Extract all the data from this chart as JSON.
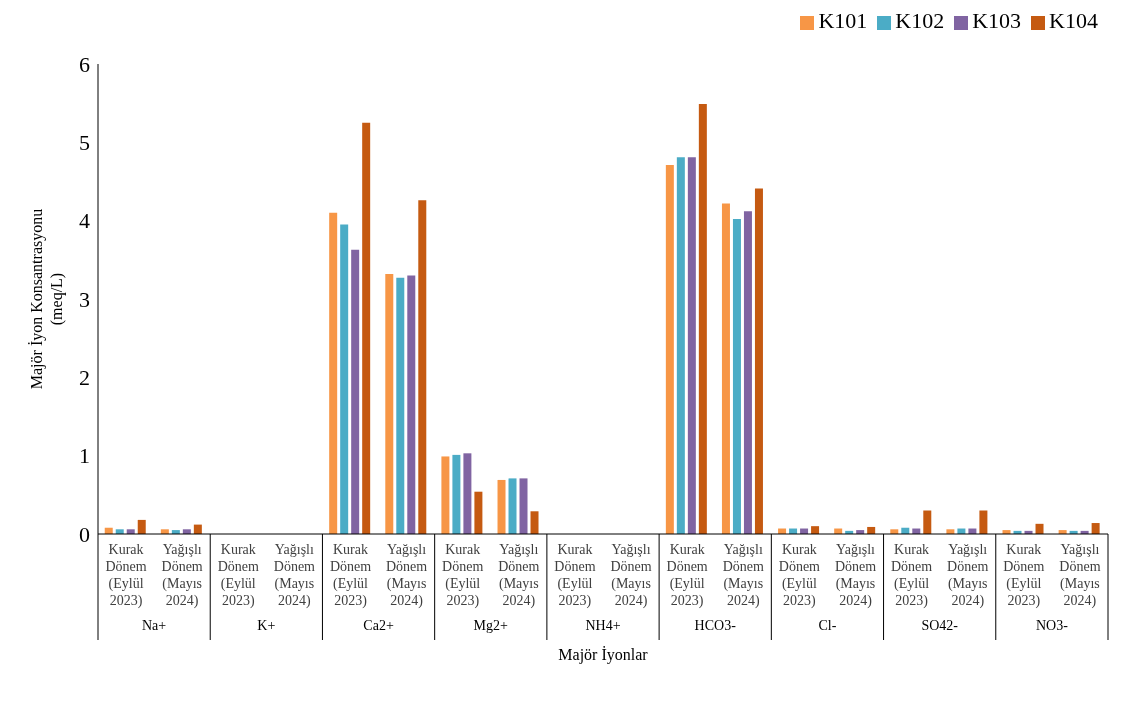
{
  "chart_data": {
    "type": "bar",
    "xlabel": "Majör İyonlar",
    "ylabel": "Majör İyon Konsantrasyonu (meq/L)",
    "categories": [
      "Kurak Dönem (Eylül 2023)",
      "Yağışlı Dönem (Mayıs 2024)",
      "Kurak Dönem (Eylül 2023)",
      "Yağışlı Dönem (Mayıs 2024)",
      "Kurak Dönem (Eylül 2023)",
      "Yağışlı Dönem (Mayıs 2024)",
      "Kurak Dönem (Eylül 2023)",
      "Yağışlı Dönem (Mayıs 2024)",
      "Kurak Dönem (Eylül 2023)",
      "Yağışlı Dönem (Mayıs 2024)",
      "Kurak Dönem (Eylül 2023)",
      "Yağışlı Dönem (Mayıs 2024)",
      "Kurak Dönem (Eylül 2023)",
      "Yağışlı Dönem (Mayıs 2024)",
      "Kurak Dönem (Eylül 2023)",
      "Yağışlı Dönem (Mayıs 2024)",
      "Kurak Dönem (Eylül 2023)",
      "Yağışlı Dönem (Mayıs 2024)"
    ],
    "annotations": [
      "Na+",
      "K+",
      "Ca2+",
      "Mg2+",
      "NH4+",
      "HCO3-",
      "Cl-",
      "SO42-",
      "NO3-"
    ],
    "series": [
      {
        "name": "K101",
        "color": "#f79646",
        "values": [
          0.08,
          0.06,
          null,
          null,
          4.1,
          3.32,
          0.99,
          0.69,
          null,
          null,
          4.71,
          4.22,
          0.07,
          0.07,
          0.06,
          0.06,
          0.05,
          0.05
        ]
      },
      {
        "name": "K102",
        "color": "#4bacc6",
        "values": [
          0.06,
          0.05,
          null,
          null,
          3.95,
          3.27,
          1.01,
          0.71,
          null,
          null,
          4.81,
          4.02,
          0.07,
          0.04,
          0.08,
          0.07,
          0.04,
          0.04
        ]
      },
      {
        "name": "K103",
        "color": "#8064a2",
        "values": [
          0.06,
          0.06,
          null,
          null,
          3.63,
          3.3,
          1.03,
          0.71,
          null,
          null,
          4.81,
          4.12,
          0.07,
          0.05,
          0.07,
          0.07,
          0.04,
          0.04
        ]
      },
      {
        "name": "K104",
        "color": "#c55a11",
        "values": [
          0.18,
          0.12,
          null,
          null,
          5.25,
          4.26,
          0.54,
          0.29,
          null,
          null,
          5.49,
          4.41,
          0.1,
          0.09,
          0.3,
          0.3,
          0.13,
          0.14
        ]
      }
    ],
    "ylim": [
      0,
      6
    ],
    "yticks": [
      0,
      1,
      2,
      3,
      4,
      5,
      6
    ],
    "grid": false,
    "legend": "top right"
  }
}
